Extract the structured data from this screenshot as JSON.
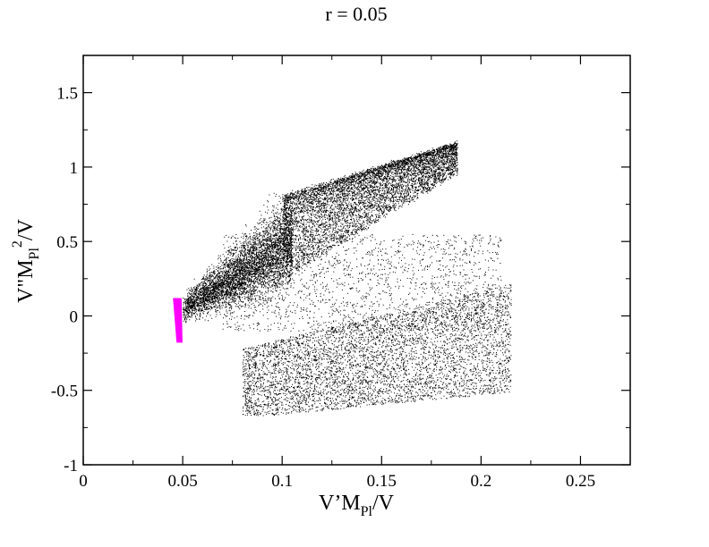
{
  "chart_data": {
    "type": "scatter",
    "title": "r = 0.05",
    "xlabel": {
      "main1": "V’M",
      "sub": "Pl",
      "main2": "/V"
    },
    "ylabel": {
      "main1": "V\"M",
      "sub": "Pl",
      "sup": "2",
      "main2": "/V"
    },
    "xlim": [
      0,
      0.275
    ],
    "ylim": [
      -1,
      1.75
    ],
    "x_ticks": [
      0,
      0.05,
      0.1,
      0.15,
      0.2,
      0.25
    ],
    "x_tick_labels": [
      "0",
      "0.05",
      "0.1",
      "0.15",
      "0.2",
      "0.25"
    ],
    "y_ticks": [
      -1,
      -0.5,
      0,
      0.5,
      1,
      1.5
    ],
    "y_tick_labels": [
      "-1",
      "-0.5",
      "0",
      "0.5",
      "1",
      "1.5"
    ],
    "grid": false,
    "series": [
      {
        "color": "#000000",
        "clusters": [
          {
            "x_range": [
              0.1,
              0.19
            ],
            "y_bottom": [
              0.8,
              1.17
            ],
            "y_top": [
              0.8,
              1.17
            ],
            "spread": [
              0.02,
              0.03
            ],
            "density": 1.0
          },
          {
            "x_range": [
              0.05,
              0.1
            ],
            "y_lower": [
              0.0,
              0.35
            ],
            "y_upper": [
              0.1,
              0.8
            ],
            "density": 0.7
          },
          {
            "x_range": [
              0.1,
              0.215
            ],
            "y_lower": [
              -0.65,
              -0.45
            ],
            "y_upper": [
              -0.1,
              0.3
            ],
            "density": 0.6
          },
          {
            "x_range": [
              0.1,
              0.2
            ],
            "y_lower": [
              0.0,
              0.0
            ],
            "y_upper": [
              0.75,
              0.3
            ],
            "density": 0.3
          }
        ]
      },
      {
        "color": "#ff00ff",
        "region": {
          "x_range": [
            0.046,
            0.049
          ],
          "y_range": [
            -0.18,
            0.12
          ]
        }
      }
    ]
  }
}
